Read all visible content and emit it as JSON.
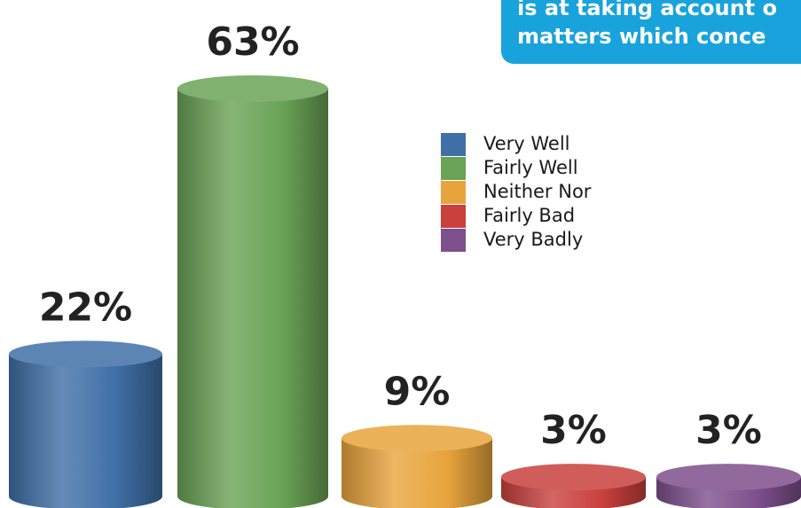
{
  "chart_data": {
    "type": "bar",
    "annotations": [
      "is at taking account o",
      "matters which conce"
    ],
    "categories": [
      "Very Well",
      "Fairly Well",
      "Neither Nor",
      "Fairly Bad",
      "Very Badly"
    ],
    "values": [
      22,
      63,
      9,
      3,
      3
    ],
    "value_labels": [
      "22%",
      "63%",
      "9%",
      "3%",
      "3%"
    ],
    "colors": [
      "#3f6fa6",
      "#6aa355",
      "#e8a43c",
      "#c9403d",
      "#7d4f8c"
    ],
    "legend": "upper center"
  }
}
